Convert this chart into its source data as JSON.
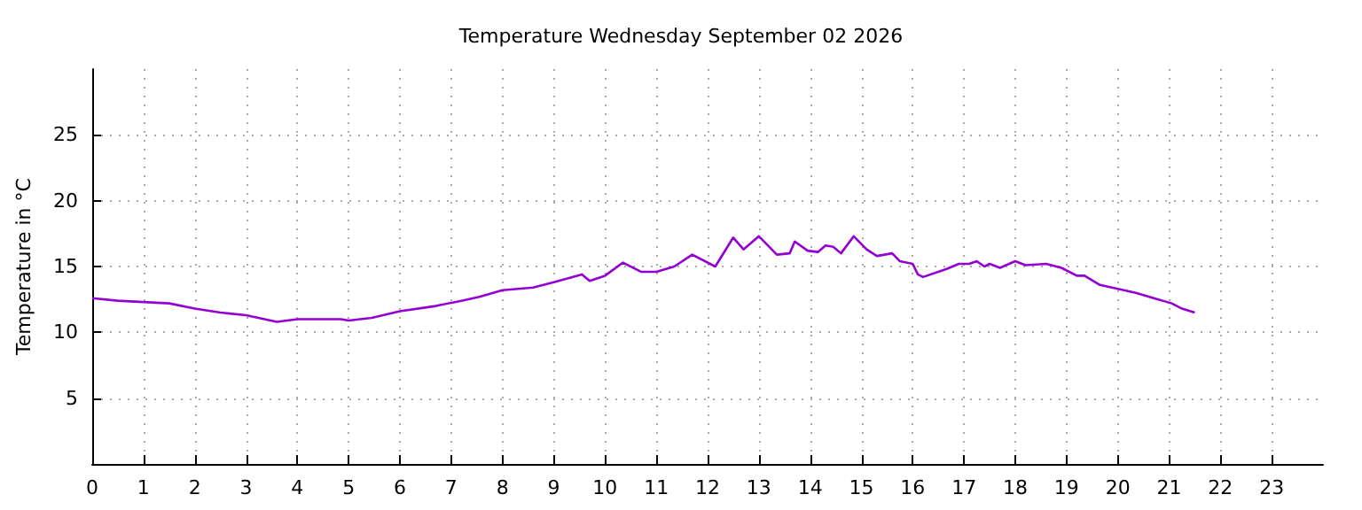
{
  "chart_data": {
    "type": "line",
    "title": "Temperature Wednesday September 02 2026",
    "ylabel": "Temperature in °C",
    "xlim": [
      0,
      24
    ],
    "xticks": [
      0,
      1,
      2,
      3,
      4,
      5,
      6,
      7,
      8,
      9,
      10,
      11,
      12,
      13,
      14,
      15,
      16,
      17,
      18,
      19,
      20,
      21,
      22,
      23
    ],
    "ylim": [
      0,
      30
    ],
    "yticks": [
      5,
      10,
      15,
      20,
      25
    ],
    "grid": true,
    "marker": "none",
    "line_style": "solid",
    "series": [
      {
        "color": "#9400d3",
        "x": [
          0,
          0.5,
          1,
          1.5,
          2,
          2.5,
          3,
          3.6,
          4,
          4.85,
          5,
          5.45,
          6,
          6.7,
          7.2,
          7.55,
          8,
          8.6,
          9,
          9.55,
          9.7,
          10,
          10.35,
          10.7,
          11,
          11.35,
          11.7,
          12.15,
          12.5,
          12.7,
          13,
          13.2,
          13.35,
          13.6,
          13.7,
          13.95,
          14.15,
          14.3,
          14.45,
          14.6,
          14.85,
          15.1,
          15.3,
          15.6,
          15.75,
          16,
          16.1,
          16.2,
          16.65,
          16.9,
          17.1,
          17.25,
          17.4,
          17.5,
          17.7,
          18,
          18.2,
          18.6,
          18.9,
          19.2,
          19.35,
          19.65,
          20,
          20.35,
          20.7,
          21.05,
          21.25,
          21.5
        ],
        "values": [
          12.6,
          12.4,
          12.3,
          12.2,
          11.8,
          11.5,
          11.3,
          10.8,
          11.0,
          11.0,
          10.9,
          11.1,
          11.6,
          12.0,
          12.4,
          12.7,
          13.2,
          13.4,
          13.8,
          14.4,
          13.9,
          14.3,
          15.3,
          14.6,
          14.6,
          15.0,
          15.9,
          15.0,
          17.2,
          16.3,
          17.3,
          16.5,
          15.9,
          16.0,
          16.9,
          16.2,
          16.1,
          16.6,
          16.5,
          16.0,
          17.3,
          16.3,
          15.8,
          16.0,
          15.4,
          15.2,
          14.4,
          14.2,
          14.8,
          15.2,
          15.2,
          15.4,
          15.0,
          15.2,
          14.9,
          15.4,
          15.1,
          15.2,
          14.9,
          14.3,
          14.3,
          13.6,
          13.3,
          13.0,
          12.6,
          12.2,
          11.8,
          11.5
        ]
      }
    ]
  }
}
